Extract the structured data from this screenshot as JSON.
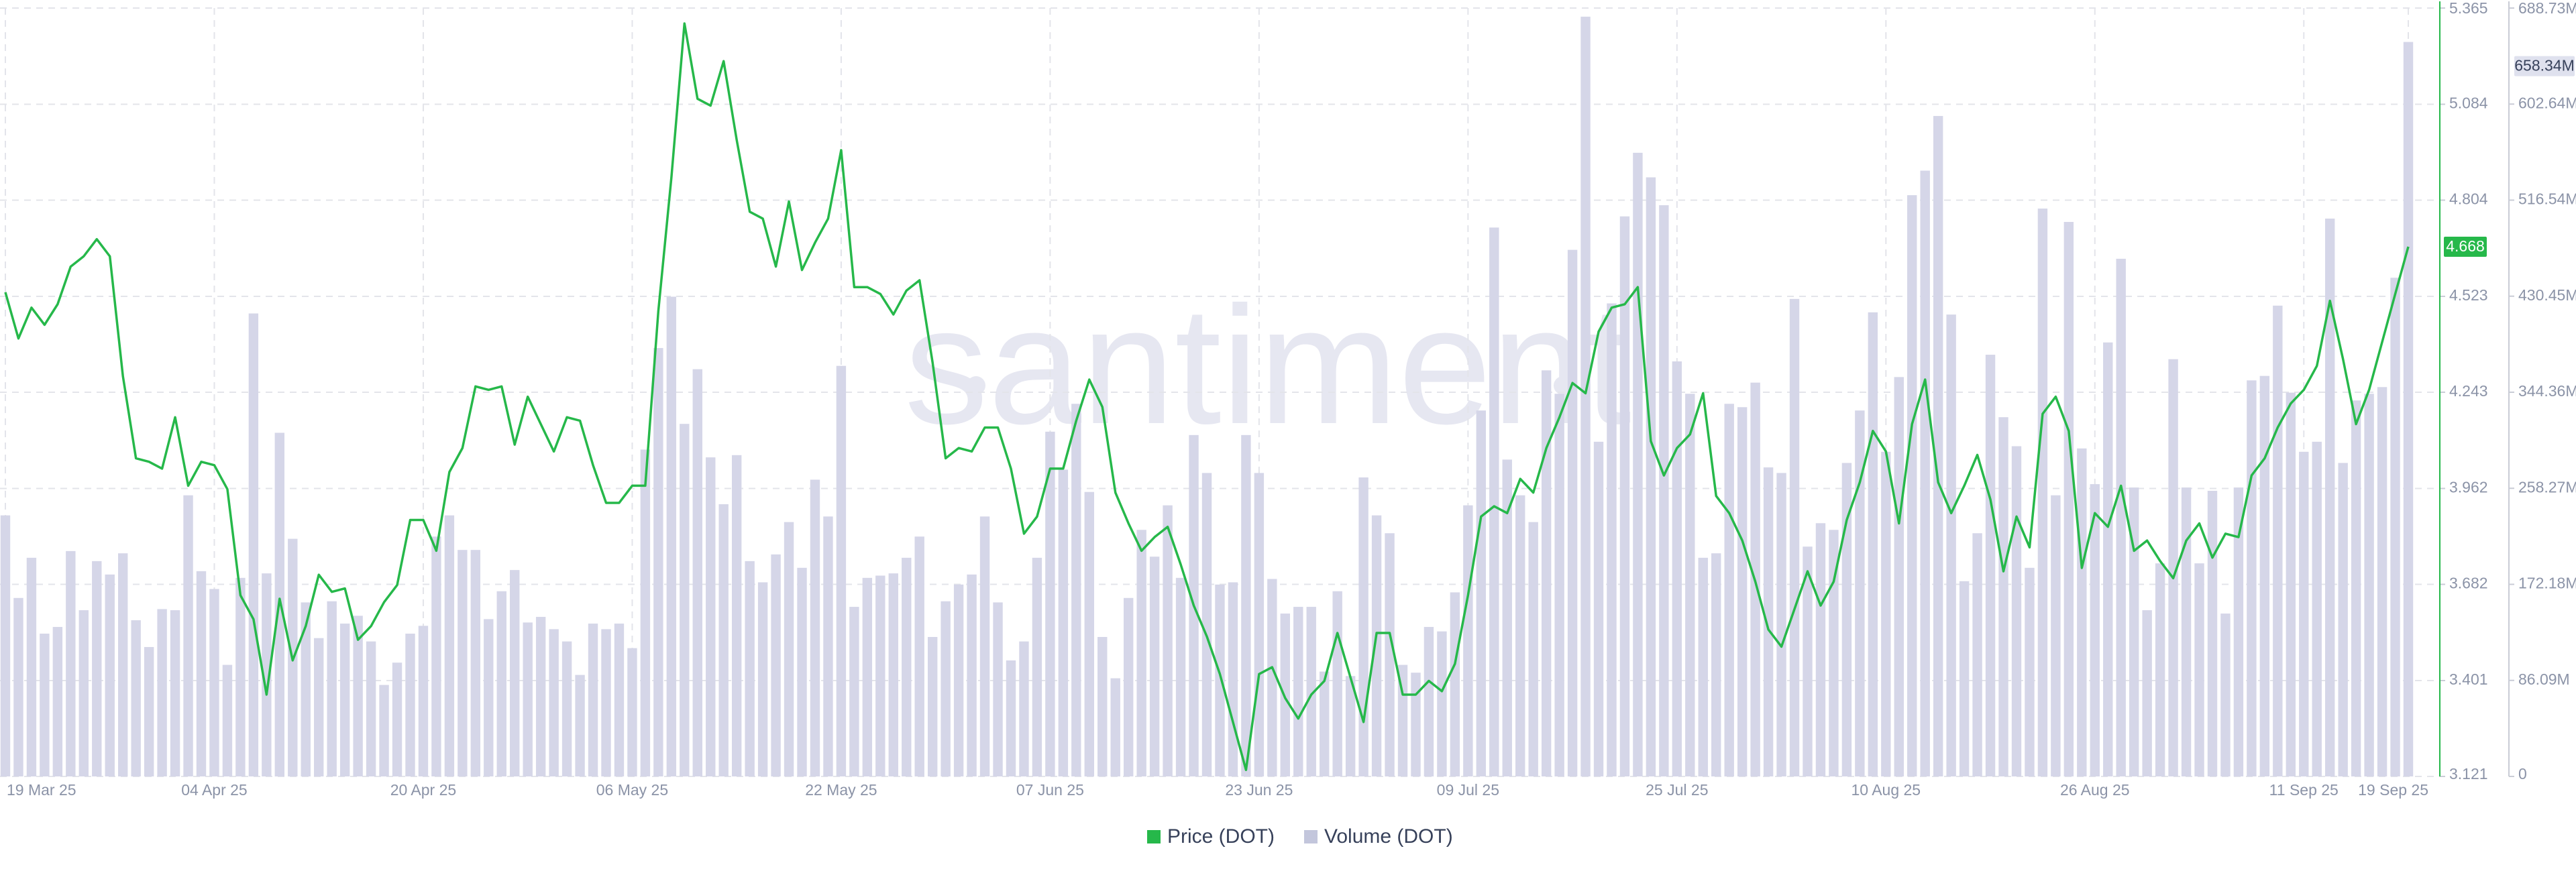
{
  "chart_data": {
    "type": "bar-line",
    "watermark": "santiment",
    "categories": [
      "19 Mar 25",
      null,
      null,
      null,
      null,
      null,
      null,
      null,
      null,
      null,
      null,
      null,
      null,
      null,
      null,
      null,
      "04 Apr 25",
      null,
      null,
      null,
      null,
      null,
      null,
      null,
      null,
      null,
      null,
      null,
      null,
      null,
      null,
      null,
      "20 Apr 25",
      null,
      null,
      null,
      null,
      null,
      null,
      null,
      null,
      null,
      null,
      null,
      null,
      null,
      null,
      null,
      "06 May 25",
      null,
      null,
      null,
      null,
      null,
      null,
      null,
      null,
      null,
      null,
      null,
      null,
      null,
      null,
      null,
      "22 May 25",
      null,
      null,
      null,
      null,
      null,
      null,
      null,
      null,
      null,
      null,
      null,
      null,
      null,
      null,
      null,
      "07 Jun 25",
      null,
      null,
      null,
      null,
      null,
      null,
      null,
      null,
      null,
      null,
      null,
      null,
      null,
      null,
      null,
      "23 Jun 25",
      null,
      null,
      null,
      null,
      null,
      null,
      null,
      null,
      null,
      null,
      null,
      null,
      null,
      null,
      null,
      "09 Jul 25",
      null,
      null,
      null,
      null,
      null,
      null,
      null,
      null,
      null,
      null,
      null,
      null,
      null,
      null,
      null,
      "25 Jul 25",
      null,
      null,
      null,
      null,
      null,
      null,
      null,
      null,
      null,
      null,
      null,
      null,
      null,
      null,
      null,
      "10 Aug 25",
      null,
      null,
      null,
      null,
      null,
      null,
      null,
      null,
      null,
      null,
      null,
      null,
      null,
      null,
      null,
      "26 Aug 25",
      null,
      null,
      null,
      null,
      null,
      null,
      null,
      null,
      null,
      null,
      null,
      null,
      null,
      null,
      null,
      "11 Sep 25",
      null,
      null,
      null,
      null,
      null,
      null,
      null,
      "19 Sep 25"
    ],
    "series": [
      {
        "name": "Price (DOT)",
        "type": "line",
        "axis": "y",
        "color": "#26b84a",
        "values": [
          4.535,
          4.4,
          4.49,
          4.44,
          4.5,
          4.61,
          4.64,
          4.69,
          4.64,
          4.29,
          4.05,
          4.04,
          4.02,
          4.17,
          3.97,
          4.04,
          4.03,
          3.96,
          3.65,
          3.58,
          3.36,
          3.64,
          3.46,
          3.56,
          3.71,
          3.66,
          3.67,
          3.52,
          3.56,
          3.63,
          3.68,
          3.87,
          3.87,
          3.78,
          4.01,
          4.08,
          4.26,
          4.25,
          4.26,
          4.09,
          4.23,
          4.15,
          4.07,
          4.17,
          4.16,
          4.03,
          3.92,
          3.92,
          3.97,
          3.97,
          4.48,
          4.87,
          5.32,
          5.1,
          5.08,
          5.21,
          4.98,
          4.77,
          4.75,
          4.61,
          4.8,
          4.6,
          4.68,
          4.75,
          4.95,
          4.55,
          4.55,
          4.53,
          4.47,
          4.54,
          4.57,
          4.33,
          4.05,
          4.08,
          4.07,
          4.14,
          4.14,
          4.02,
          3.83,
          3.88,
          4.02,
          4.02,
          4.16,
          4.28,
          4.2,
          3.95,
          3.86,
          3.78,
          3.82,
          3.85,
          3.74,
          3.62,
          3.53,
          3.42,
          3.28,
          3.14,
          3.42,
          3.44,
          3.35,
          3.29,
          3.36,
          3.4,
          3.54,
          3.41,
          3.28,
          3.54,
          3.54,
          3.36,
          3.36,
          3.4,
          3.37,
          3.45,
          3.65,
          3.88,
          3.91,
          3.89,
          3.99,
          3.95,
          4.08,
          4.17,
          4.27,
          4.24,
          4.42,
          4.49,
          4.5,
          4.55,
          4.1,
          4.0,
          4.08,
          4.12,
          4.24,
          3.94,
          3.89,
          3.81,
          3.69,
          3.55,
          3.5,
          3.61,
          3.72,
          3.62,
          3.69,
          3.87,
          3.98,
          4.13,
          4.07,
          3.86,
          4.15,
          4.28,
          3.98,
          3.89,
          3.97,
          4.06,
          3.93,
          3.72,
          3.88,
          3.79,
          4.18,
          4.23,
          4.13,
          3.73,
          3.89,
          3.85,
          3.97,
          3.78,
          3.81,
          3.75,
          3.7,
          3.81,
          3.86,
          3.76,
          3.83,
          3.82,
          4.0,
          4.05,
          4.14,
          4.21,
          4.25,
          4.32,
          4.51,
          4.34,
          4.15,
          4.25,
          4.39,
          4.53,
          4.668
        ]
      },
      {
        "name": "Volume (DOT)",
        "type": "bar",
        "axis": "y2",
        "color": "#d5d6e8",
        "values": [
          234000000,
          160000000,
          196000000,
          128000000,
          134000000,
          202000000,
          149000000,
          193000000,
          181000000,
          200000000,
          140000000,
          116000000,
          150000000,
          149000000,
          252000000,
          184000000,
          168000000,
          100000000,
          178000000,
          415000000,
          182000000,
          308000000,
          213000000,
          156000000,
          124000000,
          157000000,
          137000000,
          144000000,
          121000000,
          82000000,
          102000000,
          128000000,
          135000000,
          215000000,
          234000000,
          203000000,
          203000000,
          141000000,
          166000000,
          185000000,
          138000000,
          143000000,
          132000000,
          121000000,
          91000000,
          137000000,
          132000000,
          137000000,
          115000000,
          293000000,
          384000000,
          430000000,
          316000000,
          365000000,
          286000000,
          244000000,
          288000000,
          193000000,
          174000000,
          199000000,
          228000000,
          187000000,
          266000000,
          233000000,
          368000000,
          152000000,
          178000000,
          180000000,
          182000000,
          196000000,
          215000000,
          125000000,
          157000000,
          172000000,
          181000000,
          233000000,
          156000000,
          104000000,
          121000000,
          196000000,
          309000000,
          275000000,
          334000000,
          255000000,
          125000000,
          88000000,
          160000000,
          221000000,
          197000000,
          243000000,
          178000000,
          306000000,
          272000000,
          172000000,
          174000000,
          306000000,
          272000000,
          177000000,
          146000000,
          152000000,
          152000000,
          94000000,
          166000000,
          90000000,
          268000000,
          234000000,
          218000000,
          100000000,
          93000000,
          134000000,
          130000000,
          165000000,
          243000000,
          328000000,
          492000000,
          284000000,
          252000000,
          228000000,
          364000000,
          343000000,
          472000000,
          681000000,
          300000000,
          424000000,
          502000000,
          559000000,
          537000000,
          512000000,
          372000000,
          343000000,
          196000000,
          200000000,
          334000000,
          331000000,
          353000000,
          277000000,
          272000000,
          428000000,
          206000000,
          227000000,
          221000000,
          281000000,
          328000000,
          416000000,
          291000000,
          358000000,
          521000000,
          543000000,
          592000000,
          414000000,
          175000000,
          218000000,
          378000000,
          322000000,
          296000000,
          187000000,
          509000000,
          252000000,
          497000000,
          294000000,
          262000000,
          389000000,
          464000000,
          259000000,
          149000000,
          191000000,
          374000000,
          259000000,
          191000000,
          256000000,
          146000000,
          259000000,
          355000000,
          359000000,
          422000000,
          344000000,
          291000000,
          300000000,
          500000000,
          281000000,
          337000000,
          343000000,
          349000000,
          447000000,
          658340000
        ],
        "value_labels": [
          null,
          null,
          null,
          null,
          null,
          null,
          null,
          null,
          null,
          null,
          null,
          null,
          null,
          null,
          null,
          null,
          null,
          null,
          null,
          null,
          null,
          null,
          null,
          null,
          null,
          null,
          null,
          null,
          null,
          null,
          null,
          null,
          null,
          null,
          null,
          null,
          null,
          null,
          null,
          null,
          null,
          null,
          null,
          null,
          null,
          null,
          null,
          null,
          null,
          null,
          null,
          null,
          null,
          null,
          null,
          null,
          null,
          null,
          null,
          null,
          null,
          null,
          null,
          null,
          null,
          null,
          null,
          null,
          null,
          null,
          null,
          null,
          null,
          null,
          null,
          null,
          null,
          null,
          null,
          null,
          null,
          null,
          null,
          null,
          null,
          null,
          null,
          null,
          null,
          null,
          null,
          null,
          null,
          null,
          null,
          null,
          null,
          null,
          null,
          null,
          null,
          null,
          null,
          null,
          null,
          null,
          null,
          null,
          null,
          null,
          null,
          null,
          null,
          null,
          null,
          null,
          null,
          null,
          null,
          null,
          null,
          null,
          null,
          null,
          null,
          null,
          null,
          null,
          null,
          null,
          null,
          null,
          null,
          null,
          null,
          null,
          null,
          null,
          null,
          null,
          null,
          null,
          null,
          null,
          null,
          null,
          null,
          null,
          null,
          null,
          null,
          null,
          null,
          null,
          null,
          null,
          null,
          null,
          null,
          null,
          null,
          null,
          null,
          null,
          null,
          null,
          null,
          null,
          null,
          null,
          null,
          null,
          null,
          null,
          null,
          null,
          null,
          null,
          null,
          null,
          null,
          null,
          null,
          null,
          "658.34M"
        ]
      }
    ],
    "ylim": [
      3.121,
      5.365
    ],
    "yticks": [
      3.121,
      3.401,
      3.682,
      3.962,
      4.243,
      4.523,
      4.804,
      5.084,
      5.365
    ],
    "y2lim": [
      0,
      688730000
    ],
    "y2ticks": [
      0,
      {
        "value": 86090000,
        "label": "86.09M"
      },
      {
        "value": 172180000,
        "label": "172.18M"
      },
      {
        "value": 258270000,
        "label": "258.27M"
      },
      {
        "value": 344360000,
        "label": "344.36M"
      },
      {
        "value": 430450000,
        "label": "430.45M"
      },
      {
        "value": 516540000,
        "label": "516.54M"
      },
      {
        "value": 602640000,
        "label": "602.64M"
      },
      {
        "value": 688730000,
        "label": "688.73M"
      }
    ],
    "grid": true,
    "legend": "bottom"
  }
}
